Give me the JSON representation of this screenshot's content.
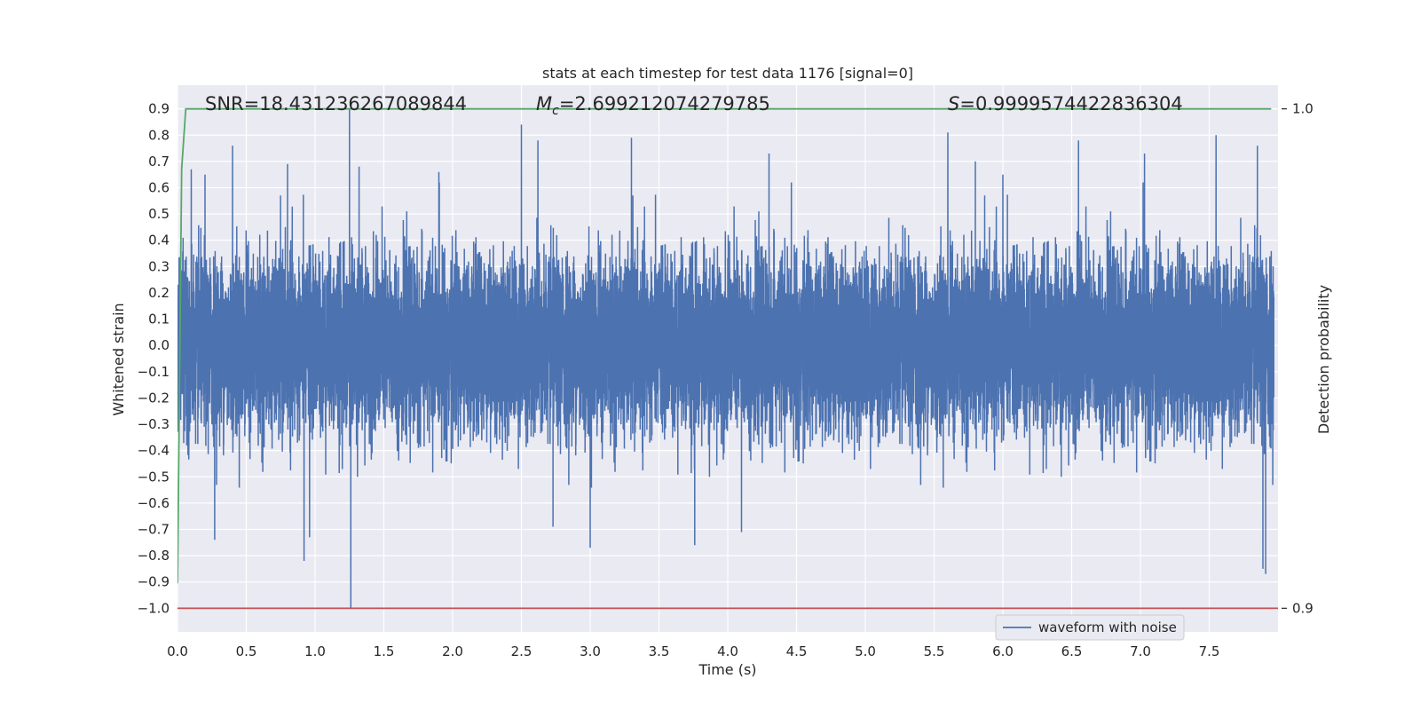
{
  "chart_data": {
    "type": "line",
    "title": "stats at each timestep for test data 1176 [signal=0]",
    "xlabel": "Time (s)",
    "ylabel": "Whitened strain",
    "y2label": "Detection probability",
    "xlim": [
      0.0,
      8.0
    ],
    "ylim": [
      -1.09,
      0.99
    ],
    "y2lim": [
      0.9,
      1.0
    ],
    "x_ticks": [
      "0.0",
      "0.5",
      "1.0",
      "1.5",
      "2.0",
      "2.5",
      "3.0",
      "3.5",
      "4.0",
      "4.5",
      "5.0",
      "5.5",
      "6.0",
      "6.5",
      "7.0",
      "7.5"
    ],
    "y_ticks": [
      "0.9",
      "0.8",
      "0.7",
      "0.6",
      "0.5",
      "0.4",
      "0.3",
      "0.2",
      "0.1",
      "0.0",
      "−0.1",
      "−0.2",
      "−0.3",
      "−0.4",
      "−0.5",
      "−0.6",
      "−0.7",
      "−0.8",
      "−0.9",
      "−1.0"
    ],
    "y2_ticks": [
      "1.0",
      "0.9"
    ],
    "annotations": {
      "snr": "SNR=18.431236267089844",
      "mc_symbol": "M",
      "mc_sub": "c",
      "mc_value": "=2.699212074279785",
      "s_symbol": "S",
      "s_value": "=0.9999574422836304"
    },
    "grid": true,
    "legend": {
      "entries": [
        "waveform with noise"
      ],
      "position": "lower-right"
    },
    "series": [
      {
        "name": "waveform with noise",
        "color": "#4c72b0",
        "axis": "left",
        "description": "noisy whitened strain, mostly within about -0.45 to 0.45 with spikes",
        "sample_rate": 2048,
        "duration": 8.0,
        "typical_amplitude": 0.16,
        "spikes": [
          {
            "t": 0.1,
            "y": 0.67
          },
          {
            "t": 0.2,
            "y": 0.65
          },
          {
            "t": 0.27,
            "y": -0.74
          },
          {
            "t": 0.4,
            "y": 0.76
          },
          {
            "t": 0.8,
            "y": 0.69
          },
          {
            "t": 0.92,
            "y": -0.82
          },
          {
            "t": 0.96,
            "y": -0.73
          },
          {
            "t": 1.25,
            "y": 0.9
          },
          {
            "t": 1.26,
            "y": -1.0
          },
          {
            "t": 1.32,
            "y": 0.68
          },
          {
            "t": 1.9,
            "y": 0.66
          },
          {
            "t": 2.5,
            "y": 0.84
          },
          {
            "t": 2.62,
            "y": 0.78
          },
          {
            "t": 2.73,
            "y": -0.69
          },
          {
            "t": 3.0,
            "y": -0.77
          },
          {
            "t": 3.3,
            "y": 0.79
          },
          {
            "t": 3.76,
            "y": -0.76
          },
          {
            "t": 4.1,
            "y": -0.71
          },
          {
            "t": 4.3,
            "y": 0.73
          },
          {
            "t": 5.6,
            "y": 0.81
          },
          {
            "t": 5.8,
            "y": 0.7
          },
          {
            "t": 6.0,
            "y": 0.65
          },
          {
            "t": 6.55,
            "y": 0.78
          },
          {
            "t": 7.03,
            "y": 0.73
          },
          {
            "t": 7.55,
            "y": 0.8
          },
          {
            "t": 7.85,
            "y": 0.76
          },
          {
            "t": 7.89,
            "y": -0.85
          },
          {
            "t": 7.91,
            "y": -0.87
          }
        ]
      },
      {
        "name": "",
        "color": "#55a868",
        "axis": "right",
        "description": "detection probability, rises from 0.9 to 1.0 within first 0.06 s then flat",
        "x": [
          0.0,
          0.03,
          0.06,
          7.95
        ],
        "y": [
          0.905,
          0.988,
          1.0,
          1.0
        ]
      },
      {
        "name": "",
        "color": "#c44e52",
        "axis": "right",
        "description": "threshold line",
        "x": [
          0.0,
          8.0
        ],
        "y": [
          0.9,
          0.9
        ]
      }
    ]
  }
}
